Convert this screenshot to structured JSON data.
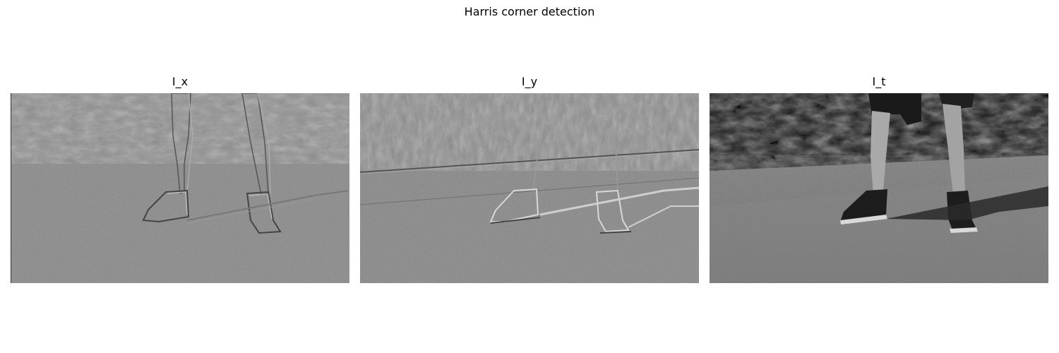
{
  "figure": {
    "title": "Harris corner detection"
  },
  "panels": [
    {
      "title": "I_x"
    },
    {
      "title": "I_y"
    },
    {
      "title": "I_t"
    }
  ]
}
